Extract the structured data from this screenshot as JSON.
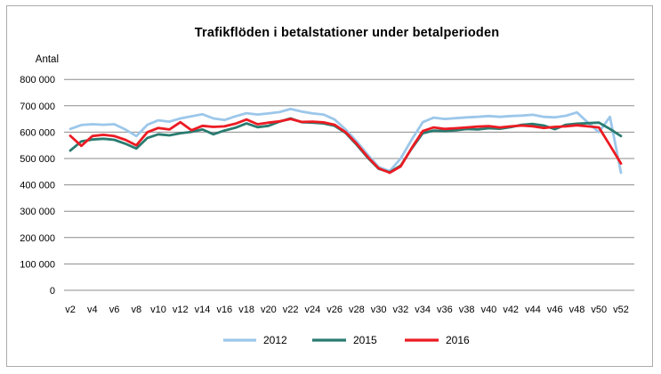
{
  "chart_data": {
    "type": "line",
    "title": "Trafikflöden i betalstationer under betalperioden",
    "ylabel": "Antal",
    "xlabel": "",
    "ylim": [
      0,
      800000
    ],
    "y_tick_step": 100000,
    "y_tick_labels": [
      "800 000",
      "700 000",
      "600 000",
      "500 000",
      "400 000",
      "300 000",
      "200 000",
      "100 000",
      "0"
    ],
    "x_tick_labels": [
      "v2",
      "v4",
      "v6",
      "v8",
      "v10",
      "v12",
      "v14",
      "v16",
      "v18",
      "v20",
      "v22",
      "v24",
      "v26",
      "v28",
      "v30",
      "v32",
      "v34",
      "v36",
      "v38",
      "v40",
      "v42",
      "v44",
      "v46",
      "v48",
      "v50",
      "v52"
    ],
    "x_weeks": [
      2,
      3,
      4,
      5,
      6,
      7,
      8,
      9,
      10,
      11,
      12,
      13,
      14,
      15,
      16,
      17,
      18,
      19,
      20,
      21,
      22,
      23,
      24,
      25,
      26,
      27,
      28,
      29,
      30,
      31,
      32,
      33,
      34,
      35,
      36,
      37,
      38,
      39,
      40,
      41,
      42,
      43,
      44,
      45,
      46,
      47,
      48,
      49,
      50,
      51,
      52
    ],
    "grid": true,
    "legend_position": "bottom",
    "colors": {
      "grid": "#8c8c8c",
      "frame_border": "#ababab",
      "series_2012": "#9cc7ea",
      "series_2015": "#2a7b70",
      "series_2016": "#ec1b23"
    },
    "series": [
      {
        "name": "2012",
        "color": "#9cc7ea",
        "values": [
          612000,
          627000,
          630000,
          628000,
          630000,
          610000,
          585000,
          628000,
          645000,
          640000,
          652000,
          660000,
          668000,
          652000,
          646000,
          660000,
          672000,
          667000,
          671000,
          676000,
          688000,
          678000,
          671000,
          667000,
          648000,
          610000,
          565000,
          515000,
          468000,
          452000,
          500000,
          572000,
          638000,
          655000,
          650000,
          653000,
          656000,
          658000,
          661000,
          658000,
          661000,
          663000,
          666000,
          658000,
          656000,
          662000,
          675000,
          636000,
          600000,
          658000,
          446000
        ]
      },
      {
        "name": "2015",
        "color": "#2a7b70",
        "values": [
          530000,
          565000,
          572000,
          575000,
          571000,
          556000,
          538000,
          578000,
          592000,
          588000,
          596000,
          601000,
          610000,
          592000,
          606000,
          617000,
          633000,
          619000,
          624000,
          640000,
          652000,
          638000,
          636000,
          633000,
          624000,
          597000,
          552000,
          503000,
          461000,
          448000,
          473000,
          538000,
          596000,
          606000,
          604000,
          607000,
          612000,
          610000,
          615000,
          613000,
          619000,
          628000,
          631000,
          625000,
          611000,
          628000,
          632000,
          634000,
          636000,
          612000,
          585000
        ]
      },
      {
        "name": "2016",
        "color": "#ec1b23",
        "values": [
          586000,
          548000,
          585000,
          590000,
          585000,
          571000,
          550000,
          600000,
          616000,
          610000,
          638000,
          607000,
          624000,
          620000,
          622000,
          632000,
          648000,
          630000,
          636000,
          641000,
          650000,
          639000,
          640000,
          637000,
          628000,
          600000,
          556000,
          506000,
          463000,
          446000,
          470000,
          540000,
          604000,
          618000,
          612000,
          615000,
          618000,
          621000,
          623000,
          618000,
          622000,
          625000,
          622000,
          616000,
          620000,
          622000,
          626000,
          622000,
          618000,
          550000,
          481000
        ]
      }
    ]
  }
}
